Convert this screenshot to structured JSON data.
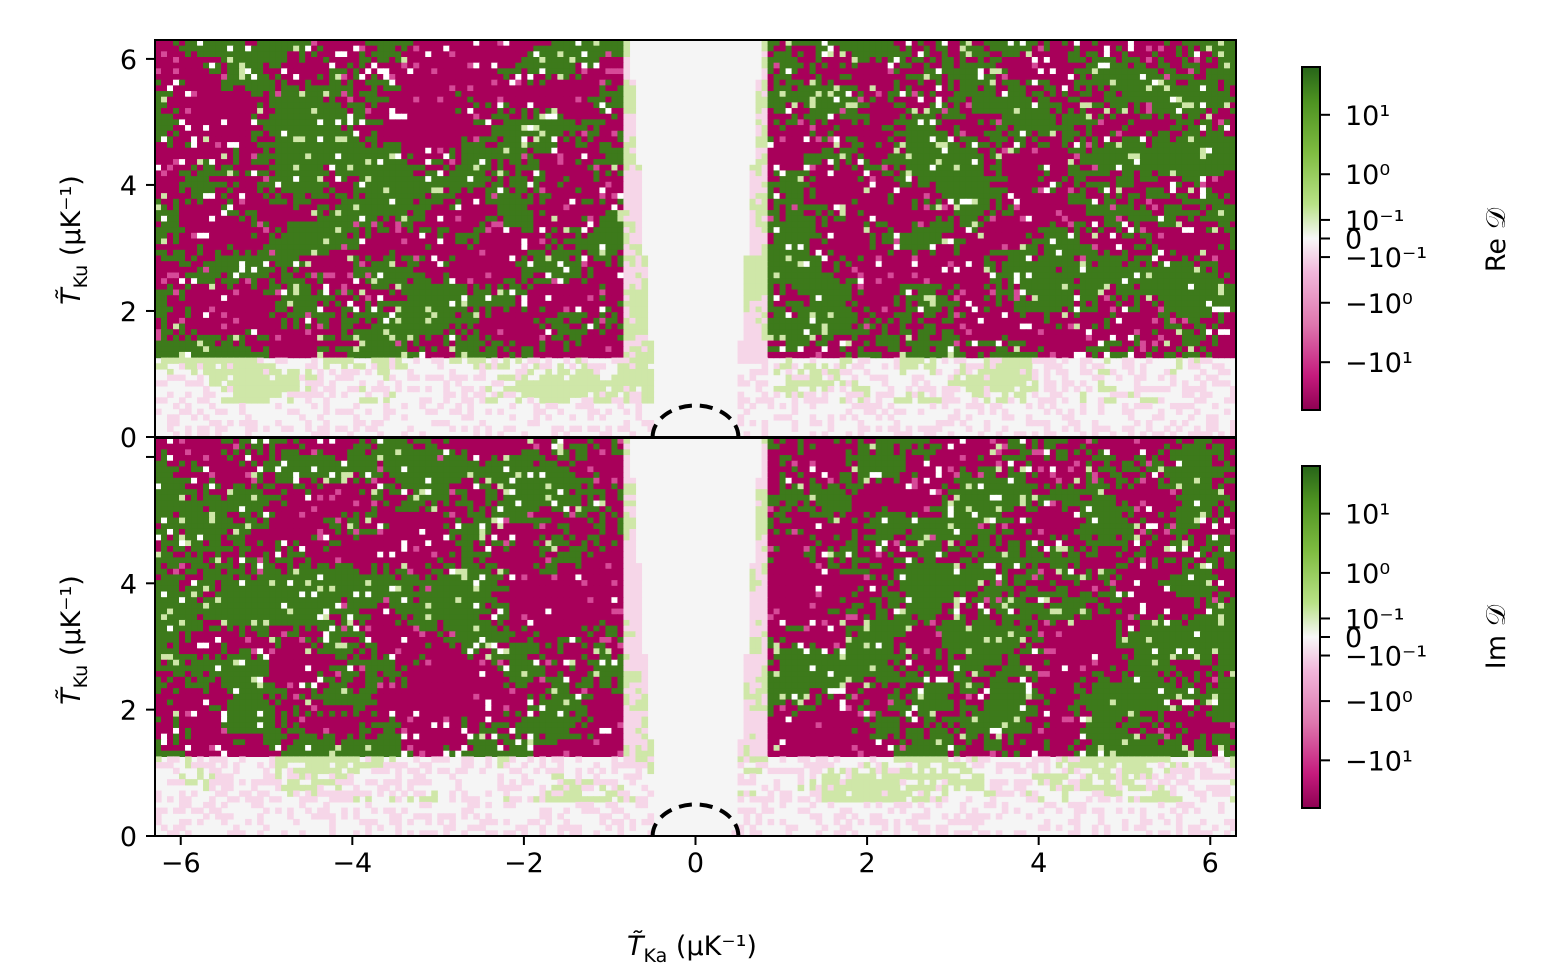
{
  "chart_data": [
    {
      "type": "heatmap",
      "panel": "top",
      "quantity": "Re D",
      "xlim": [
        -6.3,
        6.3
      ],
      "ylim": [
        0,
        6.3
      ],
      "xticks": [
        -6,
        -4,
        -2,
        0,
        2,
        4,
        6
      ],
      "yticks": [
        0,
        2,
        4,
        6
      ],
      "xtick_labels": [
        "",
        "",
        "",
        "",
        "",
        "",
        ""
      ],
      "ytick_labels": [
        "0",
        "2",
        "4",
        "6"
      ],
      "ylabel": {
        "main": "T̃",
        "sub": "Ku",
        "unit": " (µK⁻¹)"
      },
      "colorbar": {
        "label": "Re 𝒟",
        "colormap": "PiYG",
        "scale": "symlog",
        "ticks": [
          10,
          1,
          0.1,
          0,
          -0.1,
          -1,
          -10
        ],
        "tick_labels": [
          "10¹",
          "10⁰",
          "10⁻¹",
          "0",
          "−10⁻¹",
          "−10⁰",
          "−10¹"
        ]
      },
      "annotation": {
        "shape": "dashed semicircle",
        "center": [
          0,
          0
        ],
        "radius": 0.5
      }
    },
    {
      "type": "heatmap",
      "panel": "bottom",
      "quantity": "Im D",
      "xlim": [
        -6.3,
        6.3
      ],
      "ylim": [
        0,
        6.3
      ],
      "xticks": [
        -6,
        -4,
        -2,
        0,
        2,
        4,
        6
      ],
      "yticks": [
        0,
        2,
        4,
        6
      ],
      "xtick_labels": [
        "−6",
        "−4",
        "−2",
        "0",
        "2",
        "4",
        "6"
      ],
      "ytick_labels": [
        "0",
        "2",
        "4",
        ""
      ],
      "xlabel": {
        "main": "T̃",
        "sub": "Ka",
        "unit": " (µK⁻¹)"
      },
      "ylabel": {
        "main": "T̃",
        "sub": "Ku",
        "unit": " (µK⁻¹)"
      },
      "colorbar": {
        "label": "Im 𝒟",
        "colormap": "PiYG",
        "scale": "symlog",
        "ticks": [
          10,
          1,
          0.1,
          0,
          -0.1,
          -1,
          -10
        ],
        "tick_labels": [
          "10¹",
          "10⁰",
          "10⁻¹",
          "0",
          "−10⁻¹",
          "−10⁰",
          "−10¹"
        ]
      },
      "annotation": {
        "shape": "dashed semicircle",
        "center": [
          0,
          0
        ],
        "radius": 0.5
      }
    }
  ],
  "colors": {
    "magenta": "#a8005a",
    "green": "#3d7a1b",
    "light_pink": "#f6d6e8",
    "light_green": "#cfe7a8",
    "neutral": "#f5f5f5"
  }
}
